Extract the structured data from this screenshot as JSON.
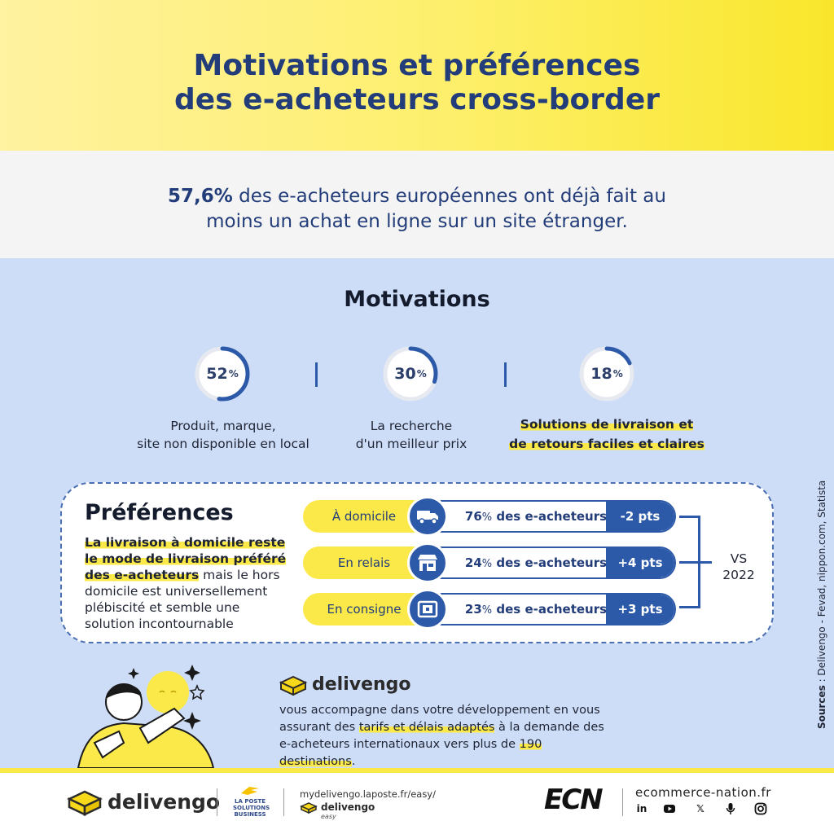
{
  "header": {
    "title_line1": "Motivations et préférences",
    "title_line2": "des e-acheteurs cross-border"
  },
  "intro": {
    "highlight": "57,6%",
    "line1_rest": " des e-acheteurs européennes ont déjà fait au",
    "line2": "moins un achat en ligne sur un site étranger."
  },
  "motivations": {
    "title": "Motivations",
    "items": [
      {
        "value": "52",
        "unit": "%",
        "percent": 52,
        "line1": "Produit, marque,",
        "line2": "site non disponible en local",
        "highlighted": false
      },
      {
        "value": "30",
        "unit": "%",
        "percent": 30,
        "line1": "La recherche",
        "line2": "d'un meilleur prix",
        "highlighted": false
      },
      {
        "value": "18",
        "unit": "%",
        "percent": 18,
        "line1": "Solutions de livraison et",
        "line2": "de retours faciles et claires",
        "highlighted": true
      }
    ]
  },
  "preferences": {
    "title": "Préférences",
    "text_highlight_1": "La livraison à domicile reste",
    "text_highlight_2": "le mode de livraison préféré",
    "text_highlight_3": "des e-acheteurs",
    "text_rest_1": " mais le hors",
    "text_rest_2": "domicile est universellement",
    "text_rest_3": "plébiscité et semble une",
    "text_rest_4": "solution incontournable",
    "rows": [
      {
        "label": "À domicile",
        "value": "76",
        "unit": "%",
        "suffix": " des e-acheteurs",
        "delta": "-2 pts",
        "icon": "truck-icon"
      },
      {
        "label": "En relais",
        "value": "24",
        "unit": "%",
        "suffix": " des e-acheteurs",
        "delta": "+4 pts",
        "icon": "shop-icon"
      },
      {
        "label": "En consigne",
        "value": "23",
        "unit": "%",
        "suffix": " des e-acheteurs",
        "delta": "+3 pts",
        "icon": "locker-icon"
      }
    ],
    "vs_line1": "VS",
    "vs_line2": "2022"
  },
  "sources": {
    "label": "Sources",
    "text": " : Delivengo   -   Fevad, nippon.com, Statista"
  },
  "promo": {
    "brand": "delivengo",
    "text_1": "vous accompagne dans votre développement en vous",
    "text_2a": "assurant des ",
    "text_2b": "tarifs et délais adaptés",
    "text_2c": " à la demande des",
    "text_3a": "e-acheteurs internationaux vers plus de ",
    "text_3b": "190 destinations",
    "text_3c": "."
  },
  "footer": {
    "brand": "delivengo",
    "laposte_line1": "LA POSTE",
    "laposte_line2": "SOLUTIONS",
    "laposte_line3": "BUSINESS",
    "url": "mydelivengo.laposte.fr/easy/",
    "small_brand": "delivengo",
    "small_sub": "easy",
    "ecn": "ECN",
    "site": "ecommerce-nation.fr"
  },
  "colors": {
    "navy": "#233d7a",
    "blue": "#2c5aa8",
    "yellow": "#fbe94a",
    "light_blue_bg": "#cdddf8"
  }
}
